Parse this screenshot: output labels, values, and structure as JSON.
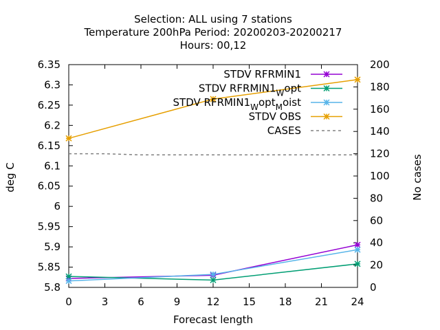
{
  "chart_data": {
    "type": "line",
    "title_lines": [
      "Selection: ALL using     7 stations",
      "Temperature 200hPa    Period: 20200203-20200217",
      "Hours:  00,12"
    ],
    "xlabel": "Forecast length",
    "ylabel": "deg C",
    "y2label": "No cases",
    "x_ticks": [
      0,
      3,
      6,
      9,
      12,
      15,
      18,
      21,
      24
    ],
    "xlim": [
      0,
      24
    ],
    "ylim": [
      5.8,
      6.35
    ],
    "y_ticks": [
      "5.8",
      "5.85",
      "5.9",
      "5.95",
      "6",
      "6.05",
      "6.1",
      "6.15",
      "6.2",
      "6.25",
      "6.3",
      "6.35"
    ],
    "y2lim": [
      0,
      200
    ],
    "y2_ticks": [
      "0",
      "20",
      "40",
      "60",
      "80",
      "100",
      "120",
      "140",
      "160",
      "180",
      "200"
    ],
    "grid": false,
    "legend_position": "top-right",
    "series": [
      {
        "name": "STDV RFRMIN1",
        "axis": "y",
        "color": "#9400d3",
        "marker": "star",
        "dash": false,
        "x": [
          0,
          12,
          24
        ],
        "values": [
          5.822,
          5.83,
          5.905
        ]
      },
      {
        "name": "STDV RFRMIN1_W opt",
        "legend_base": "STDV RFRMIN1",
        "legend_sub": "W",
        "legend_tail": "opt",
        "axis": "y",
        "color": "#009e73",
        "marker": "star",
        "dash": false,
        "x": [
          0,
          12,
          24
        ],
        "values": [
          5.827,
          5.818,
          5.858
        ]
      },
      {
        "name": "STDV RFRMIN1_W opt_M oist",
        "legend_base": "STDV RFRMIN1",
        "legend_sub": "W",
        "legend_mid": "opt",
        "legend_sub2": "M",
        "legend_tail": "oist",
        "axis": "y",
        "color": "#56b4e9",
        "marker": "star",
        "dash": false,
        "x": [
          0,
          12,
          24
        ],
        "values": [
          5.816,
          5.832,
          5.893
        ]
      },
      {
        "name": "STDV OBS",
        "axis": "y",
        "color": "#e69f00",
        "marker": "star",
        "dash": false,
        "x": [
          0,
          12,
          24
        ],
        "values": [
          6.168,
          6.265,
          6.313
        ]
      },
      {
        "name": "CASES",
        "axis": "y2",
        "color": "#808080",
        "marker": "none",
        "dash": true,
        "x": [
          0,
          3,
          6,
          9,
          12,
          15,
          18,
          21,
          24
        ],
        "values": [
          120,
          120,
          119,
          119,
          119,
          119,
          119,
          119,
          119
        ]
      }
    ]
  }
}
